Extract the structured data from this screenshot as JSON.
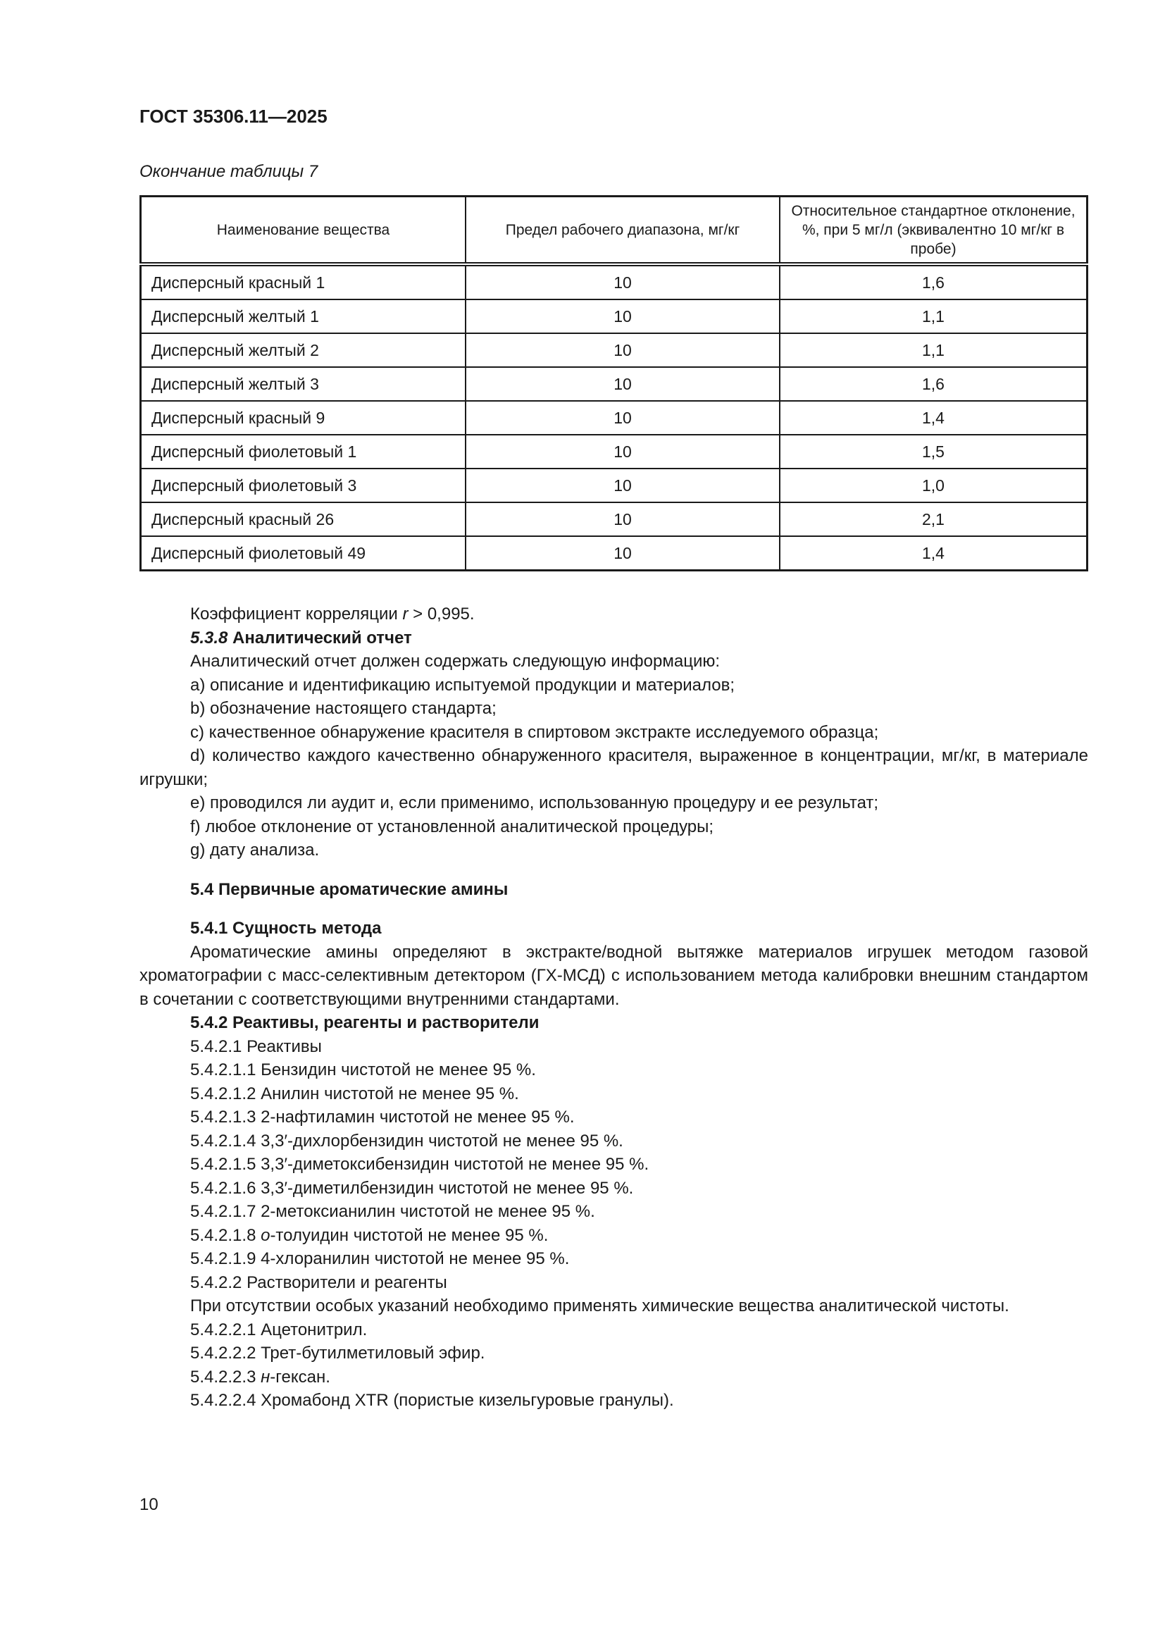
{
  "header": {
    "doc_number": "ГОСТ 35306.11—2025"
  },
  "table_caption": "Окончание таблицы 7",
  "table": {
    "columns": [
      "Наименование вещества",
      "Предел рабочего диапазона, мг/кг",
      "Относительное стандартное отклонение, %, при 5 мг/л (эквивалентно 10 мг/кг в пробе)"
    ],
    "rows": [
      [
        "Дисперсный красный 1",
        "10",
        "1,6"
      ],
      [
        "Дисперсный желтый 1",
        "10",
        "1,1"
      ],
      [
        "Дисперсный желтый 2",
        "10",
        "1,1"
      ],
      [
        "Дисперсный желтый 3",
        "10",
        "1,6"
      ],
      [
        "Дисперсный красный 9",
        "10",
        "1,4"
      ],
      [
        "Дисперсный фиолетовый 1",
        "10",
        "1,5"
      ],
      [
        "Дисперсный фиолетовый 3",
        "10",
        "1,0"
      ],
      [
        "Дисперсный красный 26",
        "10",
        "2,1"
      ],
      [
        "Дисперсный фиолетовый 49",
        "10",
        "1,4"
      ]
    ]
  },
  "correlation": {
    "pre": "Коэффициент корреляции ",
    "var": "r",
    "post": " > 0,995."
  },
  "s538": {
    "num": "5.3.8",
    "title": " Аналитический отчет"
  },
  "report_lines": [
    "Аналитический отчет должен содержать следующую информацию:",
    "a) описание и идентификацию испытуемой продукции и материалов;",
    "b) обозначение настоящего стандарта;",
    "c) качественное обнаружение красителя в спиртовом экстракте исследуемого образца;",
    "d) количество каждого качественно обнаруженного красителя, выраженное в концентрации, мг/кг, в материале игрушки;",
    "e) проводился ли аудит и, если применимо, использованную процедуру и ее результат;",
    "f) любое отклонение от установленной аналитической процедуры;",
    "g) дату анализа."
  ],
  "s54": "5.4 Первичные ароматические амины",
  "s541": "5.4.1 Сущность метода",
  "s541_text": "Ароматические амины определяют в экстракте/водной вытяжке материалов игрушек методом газовой хроматографии с масс-селективным детектором (ГХ-МСД) с использованием метода калибровки внешним стандартом в сочетании с соответствующими внутренними стандартами.",
  "s542": "5.4.2 Реактивы, реагенты и растворители",
  "reagents": [
    "5.4.2.1 Реактивы",
    "5.4.2.1.1 Бензидин чистотой не менее 95 %.",
    "5.4.2.1.2 Анилин чистотой не менее 95 %.",
    "5.4.2.1.3 2-нафтиламин чистотой не менее 95 %.",
    "5.4.2.1.4 3,3′-дихлорбензидин чистотой не менее 95 %.",
    "5.4.2.1.5 3,3′-диметоксибензидин чистотой не менее 95 %.",
    "5.4.2.1.6 3,3′-диметилбензидин чистотой не менее 95 %.",
    "5.4.2.1.7 2-метоксианилин чистотой не менее 95 %."
  ],
  "r8": {
    "pre": "5.4.2.1.8 ",
    "it": "о",
    "post": "-толуидин чистотой не менее 95 %."
  },
  "r9": "5.4.2.1.9 4-хлоранилин чистотой не менее 95 %.",
  "s5422": "5.4.2.2 Растворители и реагенты",
  "s5422_text": "При отсутствии особых указаний необходимо применять химические вещества аналитической чистоты.",
  "solv1": "5.4.2.2.1 Ацетонитрил.",
  "solv2": "5.4.2.2.2 Трет-бутилметиловый эфир.",
  "solv3": {
    "pre": "5.4.2.2.3 ",
    "it": "н",
    "post": "-гексан."
  },
  "solv4": "5.4.2.2.4 Хромабонд XTR (пористые кизельгуровые гранулы).",
  "page_number": "10"
}
